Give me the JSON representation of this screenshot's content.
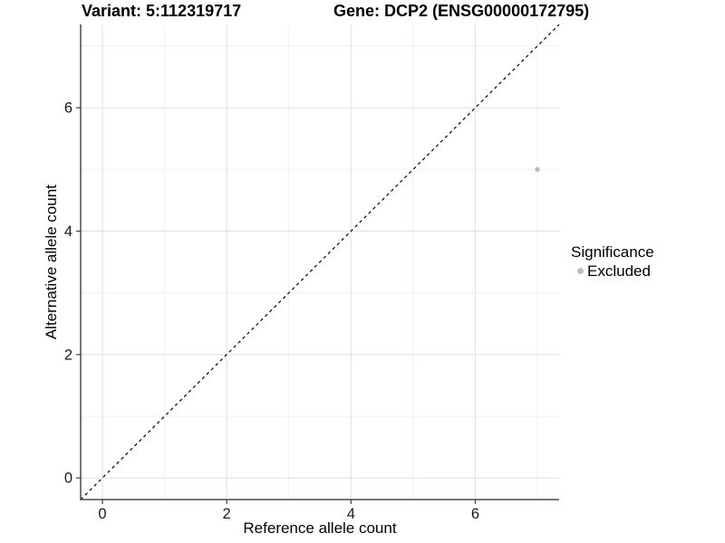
{
  "titles": {
    "variant": "Variant: 5:112319717",
    "gene": "Gene: DCP2 (ENSG00000172795)"
  },
  "chart_data": {
    "type": "scatter",
    "title_left": "Variant: 5:112319717",
    "title_right": "Gene: DCP2 (ENSG00000172795)",
    "xlabel": "Reference allele count",
    "ylabel": "Alternative allele count",
    "xlim": [
      -0.35,
      7.35
    ],
    "ylim": [
      -0.35,
      7.35
    ],
    "xticks": [
      0,
      2,
      4,
      6
    ],
    "yticks": [
      0,
      2,
      4,
      6
    ],
    "grid": "major and minor light-gray gridlines on white panel",
    "points": [
      {
        "x": 7,
        "y": 5,
        "series": "Excluded"
      }
    ],
    "reference_line": {
      "type": "identity y=x",
      "style": "dashed",
      "color": "#000000"
    },
    "legend": {
      "title": "Significance",
      "position": "right",
      "entries": [
        {
          "label": "Excluded",
          "color": "#bebebe"
        }
      ]
    }
  },
  "colors": {
    "background": "#ffffff",
    "point": "#bebebe",
    "axis_line": "#4a4a4a",
    "tick_text": "#1a1a1a",
    "grid_major": "#e4e4e4",
    "grid_minor": "#f1f1f1",
    "reference_line": "#000000"
  }
}
